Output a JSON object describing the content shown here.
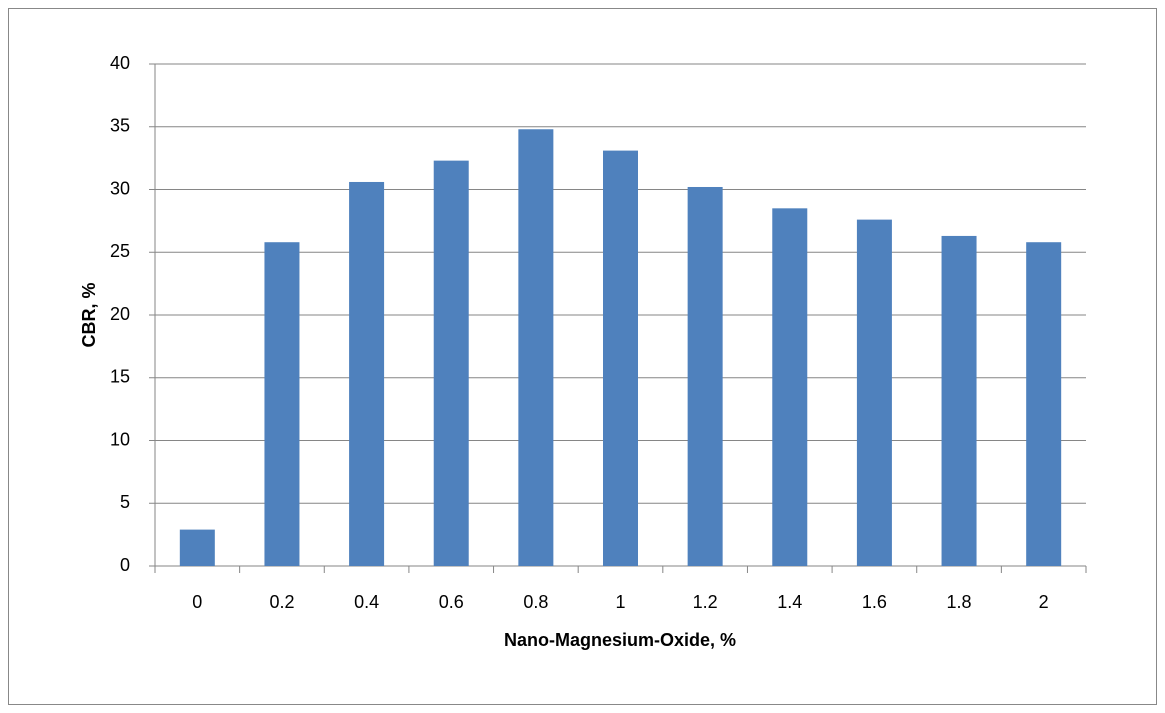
{
  "chart_data": {
    "type": "bar",
    "x_label": "Nano-Magnesium-Oxide, %",
    "y_label": "CBR, %",
    "categories": [
      "0",
      "0.2",
      "0.4",
      "0.6",
      "0.8",
      "1",
      "1.2",
      "1.4",
      "1.6",
      "1.8",
      "2"
    ],
    "values": [
      2.9,
      25.8,
      30.6,
      32.3,
      34.8,
      33.1,
      30.2,
      28.5,
      27.6,
      26.3,
      25.8
    ],
    "color": "#4f81bd",
    "ylim": [
      0,
      40
    ],
    "yticks": [
      0,
      5,
      10,
      15,
      20,
      25,
      30,
      35,
      40
    ],
    "grid": true
  }
}
